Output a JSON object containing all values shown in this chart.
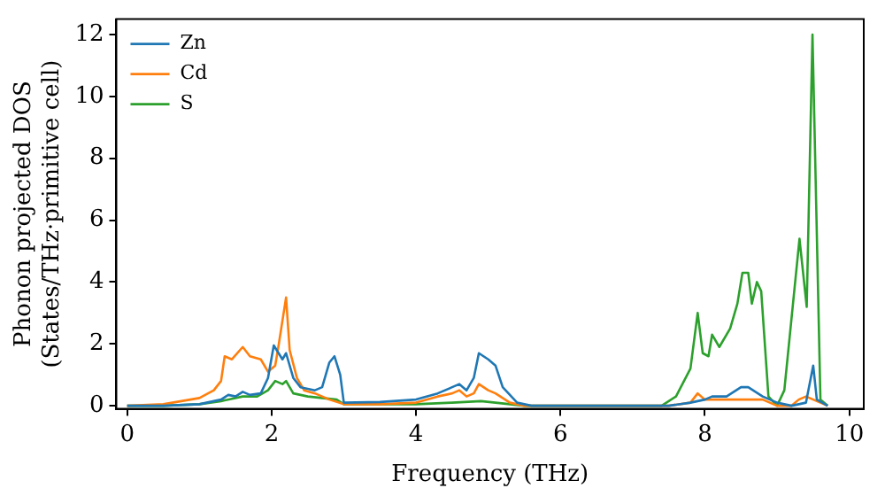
{
  "chart_data": {
    "type": "line",
    "xlabel": "Frequency (THz)",
    "ylabel": "Phonon projected DOS\n(States/THz·primitive cell)",
    "xlim": [
      -0.15,
      10.2
    ],
    "ylim": [
      -0.1,
      12.5
    ],
    "xticks": [
      0,
      2,
      4,
      6,
      8,
      10
    ],
    "yticks": [
      0,
      2,
      4,
      6,
      8,
      10,
      12
    ],
    "grid": false,
    "legend": "top left",
    "marker": "none",
    "line_style": "solid",
    "series": [
      {
        "name": "Zn",
        "color": "#1f77b4",
        "x": [
          0,
          0.5,
          1.0,
          1.3,
          1.4,
          1.5,
          1.6,
          1.7,
          1.85,
          1.95,
          2.03,
          2.15,
          2.2,
          2.3,
          2.4,
          2.5,
          2.6,
          2.7,
          2.8,
          2.87,
          2.95,
          3.0,
          3.5,
          4.0,
          4.3,
          4.5,
          4.6,
          4.7,
          4.8,
          4.87,
          5.0,
          5.1,
          5.2,
          5.4,
          5.6,
          7.5,
          7.8,
          8.0,
          8.1,
          8.3,
          8.5,
          8.6,
          8.8,
          9.0,
          9.2,
          9.4,
          9.5,
          9.55,
          9.7
        ],
        "values": [
          0,
          0,
          0.05,
          0.2,
          0.35,
          0.3,
          0.45,
          0.35,
          0.4,
          0.9,
          1.95,
          1.5,
          1.7,
          0.9,
          0.6,
          0.55,
          0.5,
          0.6,
          1.4,
          1.6,
          1.0,
          0.1,
          0.12,
          0.2,
          0.4,
          0.6,
          0.7,
          0.5,
          0.9,
          1.7,
          1.5,
          1.3,
          0.6,
          0.1,
          0,
          0,
          0.1,
          0.2,
          0.3,
          0.3,
          0.6,
          0.6,
          0.3,
          0.1,
          0,
          0.1,
          1.3,
          0.2,
          0
        ]
      },
      {
        "name": "Cd",
        "color": "#ff7f0e",
        "x": [
          0,
          0.5,
          1.0,
          1.2,
          1.3,
          1.35,
          1.45,
          1.6,
          1.7,
          1.85,
          1.95,
          2.05,
          2.1,
          2.2,
          2.25,
          2.35,
          2.45,
          2.6,
          2.8,
          3.0,
          3.5,
          4.0,
          4.3,
          4.5,
          4.6,
          4.7,
          4.8,
          4.87,
          5.0,
          5.1,
          5.3,
          5.5,
          7.5,
          7.8,
          7.9,
          8.0,
          8.2,
          8.5,
          8.8,
          9.0,
          9.2,
          9.3,
          9.4,
          9.5,
          9.6,
          9.7
        ],
        "values": [
          0,
          0.05,
          0.25,
          0.5,
          0.8,
          1.6,
          1.5,
          1.9,
          1.6,
          1.5,
          1.1,
          1.3,
          2.0,
          3.5,
          1.8,
          0.9,
          0.5,
          0.4,
          0.2,
          0.05,
          0.05,
          0.1,
          0.3,
          0.4,
          0.5,
          0.3,
          0.4,
          0.7,
          0.5,
          0.4,
          0.1,
          0,
          0,
          0.1,
          0.4,
          0.2,
          0.2,
          0.2,
          0.2,
          0,
          0,
          0.2,
          0.3,
          0.2,
          0.1,
          0
        ]
      },
      {
        "name": "S",
        "color": "#2ca02c",
        "x": [
          0,
          0.5,
          1.0,
          1.3,
          1.6,
          1.8,
          1.95,
          2.05,
          2.15,
          2.2,
          2.3,
          2.5,
          2.7,
          2.9,
          3.0,
          4.0,
          4.5,
          4.9,
          5.3,
          5.5,
          7.4,
          7.6,
          7.8,
          7.9,
          7.97,
          8.05,
          8.1,
          8.2,
          8.35,
          8.45,
          8.52,
          8.6,
          8.65,
          8.72,
          8.78,
          8.88,
          9.0,
          9.1,
          9.31,
          9.41,
          9.49,
          9.6,
          9.7
        ],
        "values": [
          0,
          0,
          0.05,
          0.15,
          0.3,
          0.3,
          0.5,
          0.8,
          0.7,
          0.8,
          0.4,
          0.3,
          0.25,
          0.2,
          0.05,
          0.05,
          0.1,
          0.15,
          0.05,
          0,
          0,
          0.3,
          1.2,
          3.0,
          1.7,
          1.6,
          2.3,
          1.9,
          2.5,
          3.3,
          4.3,
          4.3,
          3.3,
          4.0,
          3.7,
          0.3,
          0,
          0.5,
          5.4,
          3.2,
          12,
          0.2,
          0
        ]
      }
    ]
  }
}
